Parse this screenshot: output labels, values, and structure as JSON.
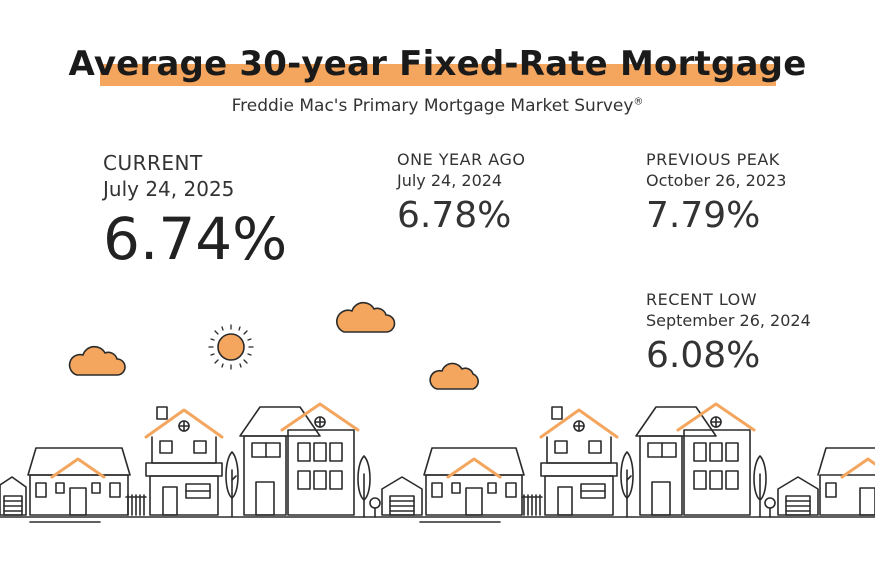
{
  "header": {
    "title": "Average 30-year Fixed-Rate Mortgage",
    "subtitle": "Freddie Mac's Primary Mortgage Market Survey",
    "subtitle_mark": "®"
  },
  "stats": {
    "current": {
      "label": "CURRENT",
      "date": "July 24, 2025",
      "value": "6.74%"
    },
    "one_year_ago": {
      "label": "ONE YEAR AGO",
      "date": "July 24, 2024",
      "value": "6.78%"
    },
    "previous_peak": {
      "label": "PREVIOUS PEAK",
      "date": "October 26, 2023",
      "value": "7.79%"
    },
    "recent_low": {
      "label": "RECENT LOW",
      "date": "September 26, 2024",
      "value": "6.08%"
    }
  },
  "colors": {
    "accent": "#f4a65f",
    "line": "#2b2b2b",
    "text": "#333333"
  },
  "decor": {
    "icons": [
      "sun-icon",
      "cloud-icon",
      "house-icon",
      "tree-icon",
      "garage-icon"
    ]
  }
}
